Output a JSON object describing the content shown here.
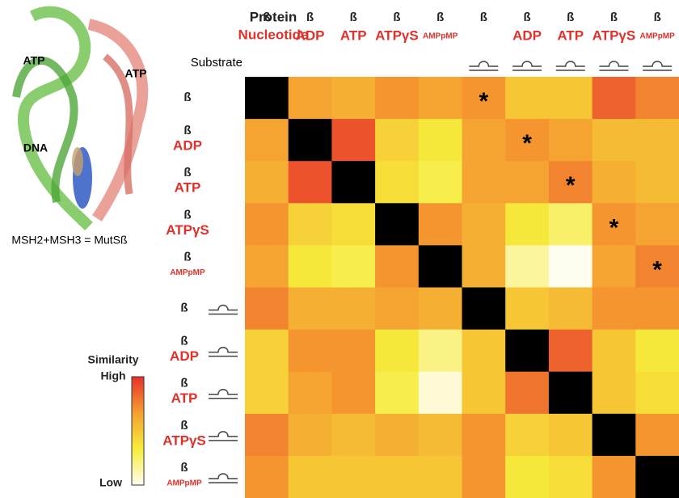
{
  "chart_data": {
    "type": "heatmap",
    "header": {
      "protein": "Protein",
      "nucleotide": "Nucleotide",
      "substrate": "Substrate"
    },
    "structure": {
      "labels": [
        "ATP",
        "ATP",
        "DNA"
      ],
      "caption": "MSH2+MSH3 = MutSß"
    },
    "categories": [
      {
        "protein": "ß",
        "nucleotide": null,
        "substrate": false
      },
      {
        "protein": "ß",
        "nucleotide": "ADP",
        "substrate": false
      },
      {
        "protein": "ß",
        "nucleotide": "ATP",
        "substrate": false
      },
      {
        "protein": "ß",
        "nucleotide": "ATPγS",
        "substrate": false
      },
      {
        "protein": "ß",
        "nucleotide": "AMPpMP",
        "substrate": false
      },
      {
        "protein": "ß",
        "nucleotide": null,
        "substrate": true
      },
      {
        "protein": "ß",
        "nucleotide": "ADP",
        "substrate": true
      },
      {
        "protein": "ß",
        "nucleotide": "ATP",
        "substrate": true
      },
      {
        "protein": "ß",
        "nucleotide": "ATPγS",
        "substrate": true
      },
      {
        "protein": "ß",
        "nucleotide": "AMPpMP",
        "substrate": true
      }
    ],
    "values": [
      [
        null,
        0.65,
        0.6,
        0.7,
        0.65,
        0.7,
        0.5,
        0.5,
        0.85,
        0.75
      ],
      [
        0.65,
        null,
        0.9,
        0.45,
        0.35,
        0.65,
        0.7,
        0.65,
        0.55,
        0.55
      ],
      [
        0.6,
        0.9,
        null,
        0.4,
        0.3,
        0.65,
        0.65,
        0.75,
        0.6,
        0.55
      ],
      [
        0.7,
        0.45,
        0.4,
        null,
        0.7,
        0.6,
        0.35,
        0.25,
        0.7,
        0.65
      ],
      [
        0.65,
        0.35,
        0.3,
        0.7,
        null,
        0.6,
        0.15,
        0.0,
        0.65,
        0.75
      ],
      [
        0.75,
        0.6,
        0.6,
        0.65,
        0.6,
        null,
        0.5,
        0.55,
        0.7,
        0.7
      ],
      [
        0.45,
        0.7,
        0.7,
        0.35,
        0.2,
        0.5,
        null,
        0.85,
        0.5,
        0.35
      ],
      [
        0.45,
        0.65,
        0.7,
        0.3,
        0.05,
        0.5,
        0.8,
        null,
        0.5,
        0.4
      ],
      [
        0.75,
        0.6,
        0.55,
        0.6,
        0.55,
        0.7,
        0.45,
        0.5,
        null,
        0.7
      ],
      [
        0.7,
        0.5,
        0.5,
        0.5,
        0.5,
        0.7,
        0.35,
        0.4,
        0.7,
        null
      ]
    ],
    "annotations": [
      {
        "row": 0,
        "col": 5,
        "text": "*"
      },
      {
        "row": 1,
        "col": 6,
        "text": "*"
      },
      {
        "row": 2,
        "col": 7,
        "text": "*"
      },
      {
        "row": 3,
        "col": 8,
        "text": "*"
      },
      {
        "row": 4,
        "col": 9,
        "text": "*"
      }
    ],
    "clim": [
      0,
      1
    ],
    "colormap": [
      "#fffdf0",
      "#f6ec3a",
      "#f5a030",
      "#e8302a"
    ],
    "diagonal_color": "#000000",
    "colorbar": {
      "title": "Similarity",
      "high": "High",
      "low": "Low"
    }
  }
}
